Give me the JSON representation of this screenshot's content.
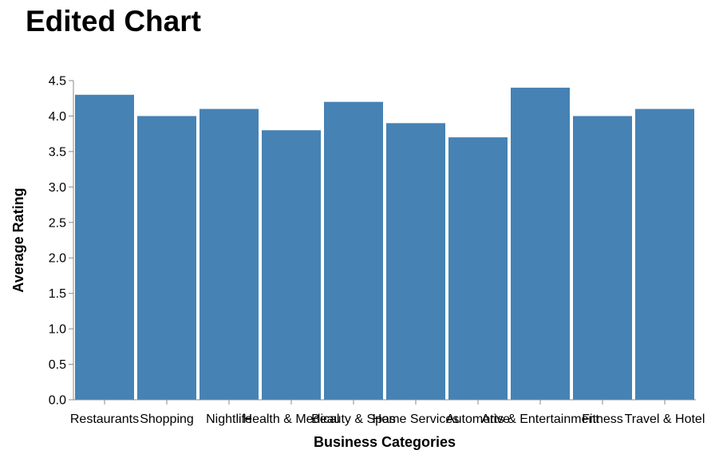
{
  "chart_data": {
    "type": "bar",
    "title": "Edited Chart",
    "xlabel": "Business Categories",
    "ylabel": "Average Rating",
    "ylim": [
      0,
      4.5
    ],
    "yticks": [
      "0.0",
      "0.5",
      "1.0",
      "1.5",
      "2.0",
      "2.5",
      "3.0",
      "3.5",
      "4.0",
      "4.5"
    ],
    "grid": false,
    "categories": [
      "Restaurants",
      "Shopping",
      "Nightlife",
      "Health & Medical",
      "Beauty & Spas",
      "Home Services",
      "Automotive",
      "Arts & Entertainment",
      "Fitness",
      "Travel & Hotel"
    ],
    "values": [
      4.3,
      4.0,
      4.1,
      3.8,
      4.2,
      3.9,
      3.7,
      4.4,
      4.0,
      4.1
    ],
    "bar_color": "#4682b4"
  }
}
